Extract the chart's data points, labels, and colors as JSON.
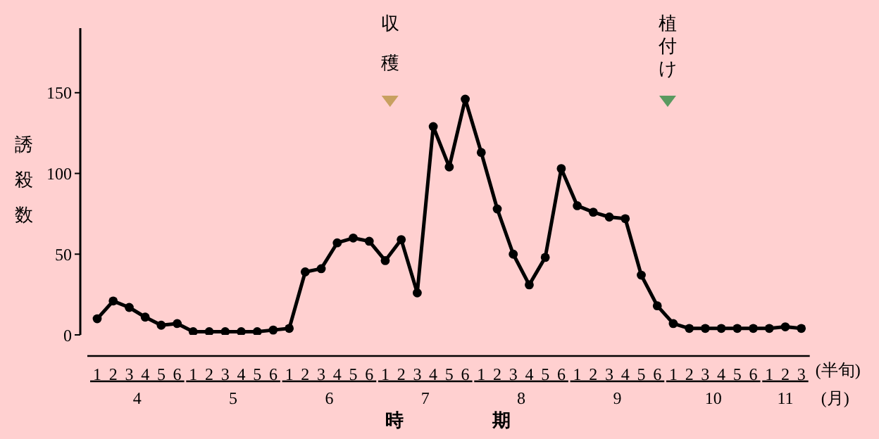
{
  "chart_data": {
    "type": "line",
    "xlabel": "時期",
    "ylabel": "誘殺数",
    "categories": [
      "1",
      "2",
      "3",
      "4",
      "5",
      "6",
      "1",
      "2",
      "3",
      "4",
      "5",
      "6",
      "1",
      "2",
      "3",
      "4",
      "5",
      "6",
      "1",
      "2",
      "3",
      "4",
      "5",
      "6",
      "1",
      "2",
      "3",
      "4",
      "5",
      "6",
      "1",
      "2",
      "3",
      "4",
      "5",
      "6",
      "1",
      "2",
      "3",
      "4",
      "5",
      "6",
      "1",
      "2",
      "3"
    ],
    "series": [
      {
        "color": "#000000",
        "values": [
          10,
          21,
          17,
          11,
          6,
          7,
          2,
          2,
          2,
          2,
          2,
          3,
          4,
          39,
          41,
          57,
          60,
          58,
          46,
          59,
          26,
          129,
          104,
          146,
          113,
          78,
          50,
          31,
          48,
          103,
          80,
          76,
          73,
          72,
          37,
          18,
          7,
          4,
          4,
          4,
          4,
          4,
          4,
          5,
          4
        ]
      }
    ],
    "ylim": [
      0,
      190
    ],
    "yticks": [
      0,
      50,
      100,
      150
    ],
    "grid": false,
    "marker": "circle",
    "line_style": "solid",
    "annotations": [
      "収穫",
      "植付け",
      "4",
      "5",
      "6",
      "7",
      "8",
      "9",
      "10",
      "11",
      "(半旬)",
      "(月)"
    ]
  }
}
